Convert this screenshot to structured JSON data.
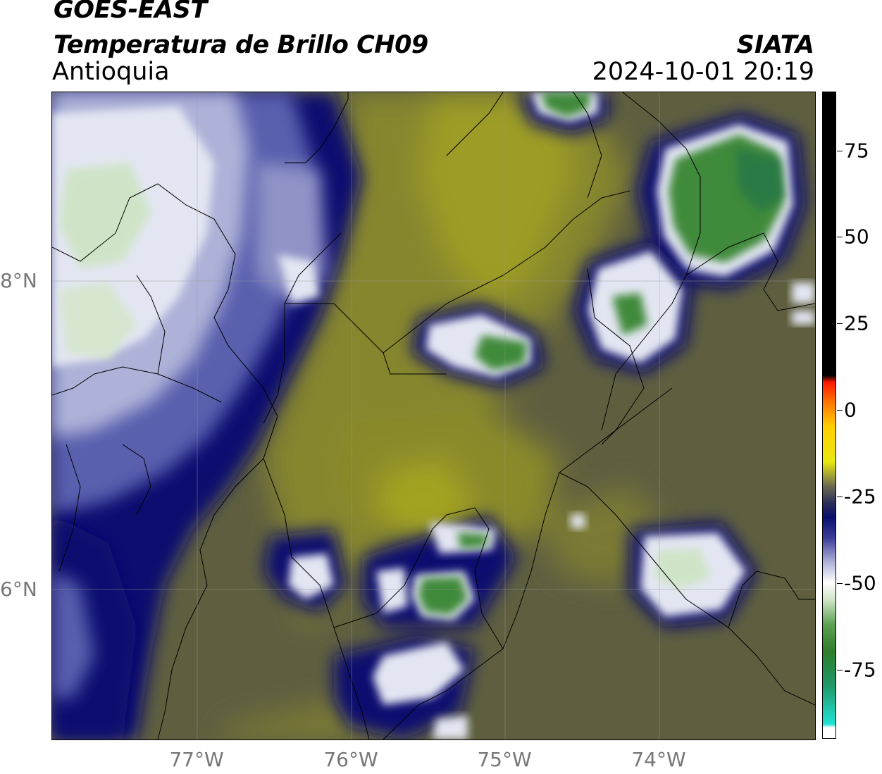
{
  "header": {
    "satellite": "GOES-EAST",
    "product": "Temperatura de Brillo CH09",
    "region": "Antioquia",
    "organization": "SIATA",
    "timestamp": "2024-10-01 20:19"
  },
  "axes": {
    "latitude_labels": [
      "8°N",
      "6°N"
    ],
    "longitude_labels": [
      "77°W",
      "76°W",
      "75°W",
      "74°W"
    ]
  },
  "colorbar": {
    "tick_labels": [
      "75",
      "50",
      "25",
      "0",
      "-25",
      "-50",
      "-75"
    ],
    "tick_values": [
      75,
      50,
      25,
      0,
      -25,
      -50,
      -75
    ],
    "range": [
      -95,
      92
    ],
    "stops": [
      {
        "v": -95,
        "c": "#ffffff"
      },
      {
        "v": -92,
        "c": "#ffffff"
      },
      {
        "v": -91,
        "c": "#1fe3d6"
      },
      {
        "v": -80,
        "c": "#1f9a6a"
      },
      {
        "v": -70,
        "c": "#2d7d2a"
      },
      {
        "v": -62,
        "c": "#5fa153"
      },
      {
        "v": -55,
        "c": "#cfe4c7"
      },
      {
        "v": -50,
        "c": "#ffffff"
      },
      {
        "v": -44,
        "c": "#aeb2d8"
      },
      {
        "v": -37,
        "c": "#3a3d98"
      },
      {
        "v": -31,
        "c": "#0a0f6e"
      },
      {
        "v": -27,
        "c": "#2a2e5a"
      },
      {
        "v": -22,
        "c": "#6b6b50"
      },
      {
        "v": -15,
        "c": "#e8e810"
      },
      {
        "v": -5,
        "c": "#ffcf00"
      },
      {
        "v": 2,
        "c": "#ff7a00"
      },
      {
        "v": 8,
        "c": "#ff1a00"
      },
      {
        "v": 10,
        "c": "#000000"
      },
      {
        "v": 92,
        "c": "#000000"
      }
    ]
  },
  "map_colors": {
    "background_warm": "#5f5f40",
    "olive": "#86862e",
    "olive_light": "#9c9c28",
    "deep_blue": "#0d1070",
    "mid_blue": "#5a5fae",
    "pale": "#e3e6f2",
    "green": "#3f8a3a",
    "green_dark": "#2a7a45",
    "grid": "#9a9a9a",
    "border": "#000000"
  }
}
